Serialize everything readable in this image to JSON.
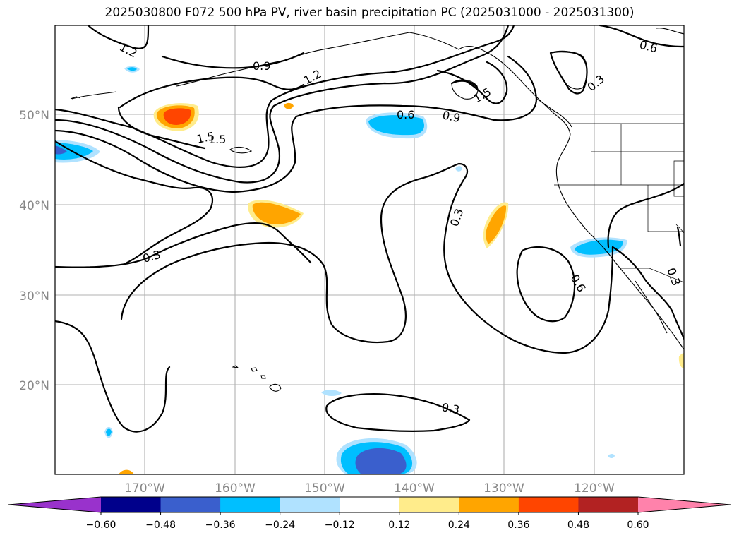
{
  "title": "2025030800 F072 500 hPa PV, river basin precipitation PC (2025031000 - 2025031300)",
  "map": {
    "projection": "Mercator",
    "extent": {
      "lon_min": -180,
      "lon_max": -110,
      "lat_min": 10,
      "lat_max": 60
    },
    "lat_ticks": [
      "20°N",
      "30°N",
      "40°N",
      "50°N"
    ],
    "lon_ticks": [
      "170°W",
      "160°W",
      "150°W",
      "140°W",
      "130°W",
      "120°W"
    ],
    "gridlines": true
  },
  "contour_labels": [
    "1.2",
    "0.9",
    "1.2",
    "1.5",
    "0.6",
    "0.9",
    "1.5",
    "0.6",
    "0.3",
    "1.5",
    "0.3",
    "0.3",
    "0.6",
    "0.3",
    "0.3"
  ],
  "colorbar": {
    "ticks": [
      "−0.60",
      "−0.48",
      "−0.36",
      "−0.24",
      "−0.12",
      "0.12",
      "0.24",
      "0.36",
      "0.48",
      "0.60"
    ],
    "colors": [
      "#9932cc",
      "#00008b",
      "#3a5fcd",
      "#00bfff",
      "#b0e2ff",
      "#ffffff",
      "#ffec8b",
      "#ffa500",
      "#ff4500",
      "#b22222",
      "#ff82ab"
    ],
    "extend": "both"
  }
}
